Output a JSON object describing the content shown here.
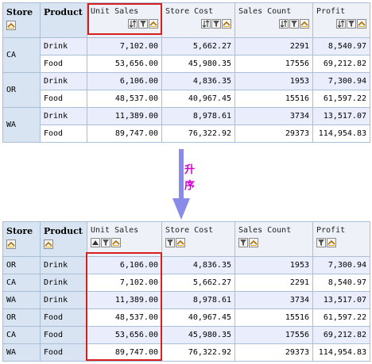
{
  "before": {
    "headers": {
      "store": "Store",
      "product": "Product",
      "unit_sales": "Unit Sales",
      "store_cost": "Store Cost",
      "sales_count": "Sales Count",
      "profit": "Profit"
    },
    "groups": [
      {
        "store": "CA",
        "rows": [
          {
            "product": "Drink",
            "unit_sales": "7,102.00",
            "store_cost": "5,662.27",
            "sales_count": "2291",
            "profit": "8,540.97"
          },
          {
            "product": "Food",
            "unit_sales": "53,656.00",
            "store_cost": "45,980.35",
            "sales_count": "17556",
            "profit": "69,212.82"
          }
        ]
      },
      {
        "store": "OR",
        "rows": [
          {
            "product": "Drink",
            "unit_sales": "6,106.00",
            "store_cost": "4,836.35",
            "sales_count": "1953",
            "profit": "7,300.94"
          },
          {
            "product": "Food",
            "unit_sales": "48,537.00",
            "store_cost": "40,967.45",
            "sales_count": "15516",
            "profit": "61,597.22"
          }
        ]
      },
      {
        "store": "WA",
        "rows": [
          {
            "product": "Drink",
            "unit_sales": "11,389.00",
            "store_cost": "8,978.61",
            "sales_count": "3734",
            "profit": "13,517.07"
          },
          {
            "product": "Food",
            "unit_sales": "89,747.00",
            "store_cost": "76,322.92",
            "sales_count": "29373",
            "profit": "114,954.83"
          }
        ]
      }
    ]
  },
  "sort_label": "升序",
  "after": {
    "headers": {
      "store": "Store",
      "product": "Product",
      "unit_sales": "Unit Sales",
      "store_cost": "Store Cost",
      "sales_count": "Sales Count",
      "profit": "Profit"
    },
    "rows": [
      {
        "store": "OR",
        "product": "Drink",
        "unit_sales": "6,106.00",
        "store_cost": "4,836.35",
        "sales_count": "1953",
        "profit": "7,300.94"
      },
      {
        "store": "CA",
        "product": "Drink",
        "unit_sales": "7,102.00",
        "store_cost": "5,662.27",
        "sales_count": "2291",
        "profit": "8,540.97"
      },
      {
        "store": "WA",
        "product": "Drink",
        "unit_sales": "11,389.00",
        "store_cost": "8,978.61",
        "sales_count": "3734",
        "profit": "13,517.07"
      },
      {
        "store": "OR",
        "product": "Food",
        "unit_sales": "48,537.00",
        "store_cost": "40,967.45",
        "sales_count": "15516",
        "profit": "61,597.22"
      },
      {
        "store": "CA",
        "product": "Food",
        "unit_sales": "53,656.00",
        "store_cost": "45,980.35",
        "sales_count": "17556",
        "profit": "69,212.82"
      },
      {
        "store": "WA",
        "product": "Food",
        "unit_sales": "89,747.00",
        "store_cost": "76,322.92",
        "sales_count": "29373",
        "profit": "114,954.83"
      }
    ]
  },
  "colors": {
    "highlight": "#d62020",
    "arrow": "#8a8ae8",
    "sort_label": "#d000d0",
    "header_bg": "#d8e4f2",
    "row_alt_bg": "#eaeefc",
    "grid_line": "#a9bfd6"
  },
  "icons": [
    "drill-icon",
    "sort-icon",
    "sort-ascending-icon",
    "filter-icon"
  ]
}
